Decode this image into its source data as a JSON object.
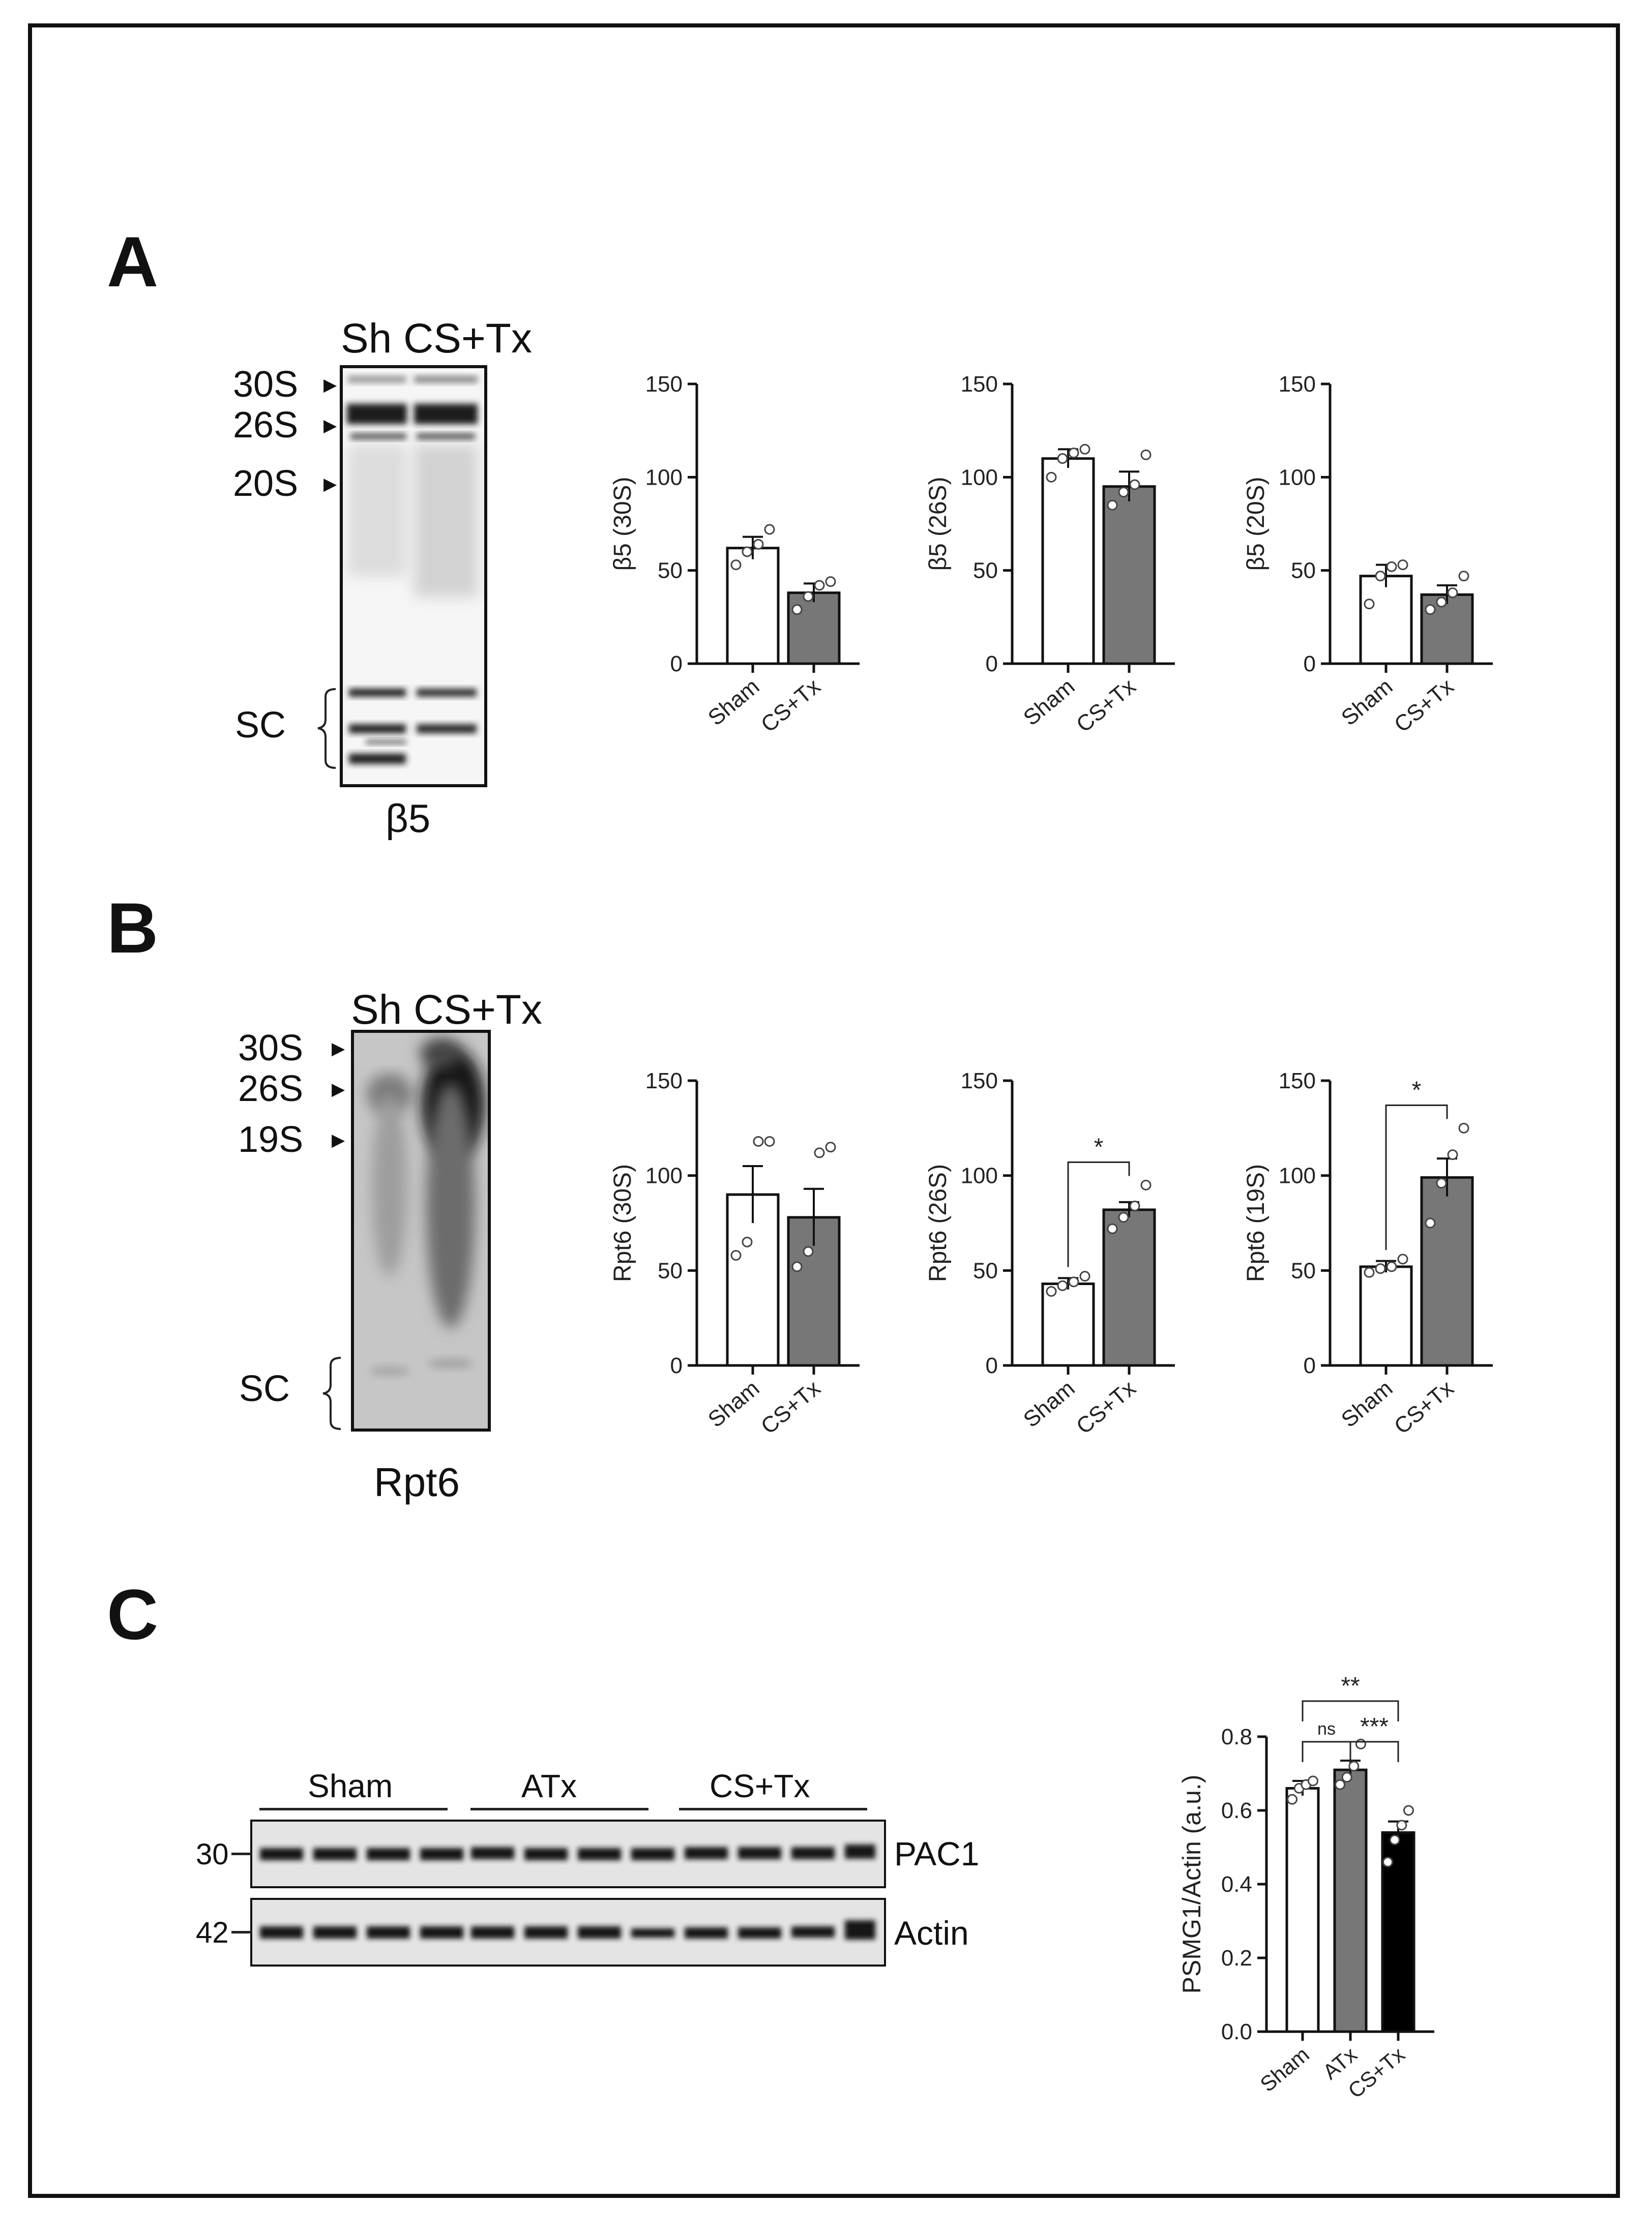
{
  "panels": {
    "A": {
      "letter": "A",
      "blot": {
        "lanes": "Sh CS+Tx",
        "markers": [
          "30S",
          "26S",
          "20S"
        ],
        "bracket": "SC",
        "antibody": "β5"
      }
    },
    "B": {
      "letter": "B",
      "blot": {
        "lanes": "Sh CS+Tx",
        "markers": [
          "30S",
          "26S",
          "19S"
        ],
        "bracket": "SC",
        "antibody": "Rpt6"
      }
    },
    "C": {
      "letter": "C",
      "blot": {
        "groups": [
          "Sham",
          "ATx",
          "CS+Tx"
        ],
        "rows": [
          {
            "label": "PAC1",
            "mw": "30"
          },
          {
            "label": "Actin",
            "mw": "42"
          }
        ]
      }
    }
  },
  "chart_data": [
    {
      "type": "bar",
      "panel": "A",
      "categories": [
        "Sham",
        "CS+Tx"
      ],
      "values": [
        62,
        38
      ],
      "sem": [
        6,
        5
      ],
      "points": [
        [
          53,
          60,
          64,
          72
        ],
        [
          29,
          36,
          42,
          44
        ]
      ],
      "ylabel": "β5 (30S)",
      "ylim": [
        0,
        150
      ],
      "yticks": [
        0,
        50,
        100,
        150
      ],
      "significance": [],
      "colors": [
        "#ffffff",
        "#777777"
      ]
    },
    {
      "type": "bar",
      "panel": "A",
      "categories": [
        "Sham",
        "CS+Tx"
      ],
      "values": [
        110,
        95
      ],
      "sem": [
        5,
        8
      ],
      "points": [
        [
          100,
          110,
          113,
          115
        ],
        [
          85,
          92,
          96,
          112
        ]
      ],
      "ylabel": "β5 (26S)",
      "ylim": [
        0,
        150
      ],
      "yticks": [
        0,
        50,
        100,
        150
      ],
      "significance": [],
      "colors": [
        "#ffffff",
        "#777777"
      ]
    },
    {
      "type": "bar",
      "panel": "A",
      "categories": [
        "Sham",
        "CS+Tx"
      ],
      "values": [
        47,
        37
      ],
      "sem": [
        6,
        5
      ],
      "points": [
        [
          32,
          47,
          52,
          53
        ],
        [
          29,
          33,
          38,
          47
        ]
      ],
      "ylabel": "β5 (20S)",
      "ylim": [
        0,
        150
      ],
      "yticks": [
        0,
        50,
        100,
        150
      ],
      "significance": [],
      "colors": [
        "#ffffff",
        "#777777"
      ]
    },
    {
      "type": "bar",
      "panel": "B",
      "categories": [
        "Sham",
        "CS+Tx"
      ],
      "values": [
        90,
        78
      ],
      "sem": [
        15,
        15
      ],
      "points": [
        [
          58,
          65,
          118,
          118
        ],
        [
          52,
          60,
          112,
          115
        ]
      ],
      "ylabel": "Rpt6 (30S)",
      "ylim": [
        0,
        150
      ],
      "yticks": [
        0,
        50,
        100,
        150
      ],
      "significance": [],
      "colors": [
        "#ffffff",
        "#777777"
      ]
    },
    {
      "type": "bar",
      "panel": "B",
      "categories": [
        "Sham",
        "CS+Tx"
      ],
      "values": [
        43,
        82
      ],
      "sem": [
        3,
        4
      ],
      "points": [
        [
          39,
          42,
          44,
          47
        ],
        [
          72,
          78,
          84,
          95
        ]
      ],
      "ylabel": "Rpt6 (26S)",
      "ylim": [
        0,
        150
      ],
      "yticks": [
        0,
        50,
        100,
        150
      ],
      "significance": [
        {
          "from": 0,
          "to": 1,
          "label": "*"
        }
      ],
      "colors": [
        "#ffffff",
        "#777777"
      ]
    },
    {
      "type": "bar",
      "panel": "B",
      "categories": [
        "Sham",
        "CS+Tx"
      ],
      "values": [
        52,
        99
      ],
      "sem": [
        3,
        10
      ],
      "points": [
        [
          49,
          51,
          52,
          56
        ],
        [
          75,
          96,
          111,
          125
        ]
      ],
      "ylabel": "Rpt6 (19S)",
      "ylim": [
        0,
        150
      ],
      "yticks": [
        0,
        50,
        100,
        150
      ],
      "significance": [
        {
          "from": 0,
          "to": 1,
          "label": "*"
        }
      ],
      "colors": [
        "#ffffff",
        "#777777"
      ]
    },
    {
      "type": "bar",
      "panel": "C",
      "categories": [
        "Sham",
        "ATx",
        "CS+Tx"
      ],
      "values": [
        0.66,
        0.71,
        0.54
      ],
      "sem": [
        0.02,
        0.025,
        0.03
      ],
      "points": [
        [
          0.63,
          0.66,
          0.67,
          0.68
        ],
        [
          0.67,
          0.69,
          0.72,
          0.78
        ],
        [
          0.46,
          0.52,
          0.56,
          0.6
        ]
      ],
      "ylabel": "PSMG1/Actin (a.u.)",
      "ylim": [
        0,
        0.8
      ],
      "yticks": [
        0.0,
        0.2,
        0.4,
        0.6,
        0.8
      ],
      "significance": [
        {
          "from": 0,
          "to": 1,
          "label": "ns"
        },
        {
          "from": 1,
          "to": 2,
          "label": "***"
        },
        {
          "from": 0,
          "to": 2,
          "label": "**"
        }
      ],
      "colors": [
        "#ffffff",
        "#777777",
        "#000000"
      ]
    }
  ]
}
